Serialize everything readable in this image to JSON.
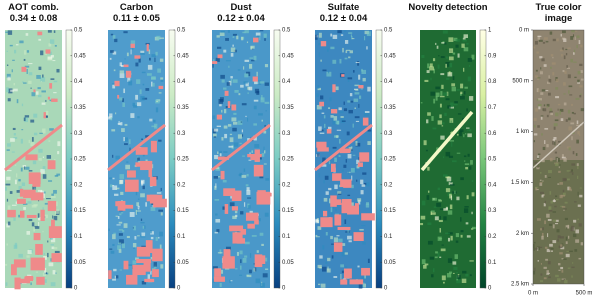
{
  "panels": [
    {
      "title": "AOT comb.",
      "subtitle": "0.34 ± 0.08",
      "colorbar": {
        "colors": [
          "#084081",
          "#2b8cbe",
          "#7bccc4",
          "#ccebc5",
          "#f7fcf0"
        ],
        "lim": [
          0,
          0.5
        ],
        "ticks": [
          0,
          0.05,
          0.1,
          0.15,
          0.2,
          0.25,
          0.3,
          0.35,
          0.4,
          0.45,
          0.5
        ]
      }
    },
    {
      "title": "Carbon",
      "subtitle": "0.11 ± 0.05",
      "colorbar": {
        "colors": [
          "#084081",
          "#2b8cbe",
          "#7bccc4",
          "#ccebc5",
          "#f7fcf0"
        ],
        "lim": [
          0,
          0.5
        ],
        "ticks": [
          0,
          0.05,
          0.1,
          0.15,
          0.2,
          0.25,
          0.3,
          0.35,
          0.4,
          0.45,
          0.5
        ]
      }
    },
    {
      "title": "Dust",
      "subtitle": "0.12 ± 0.04",
      "colorbar": {
        "colors": [
          "#084081",
          "#2b8cbe",
          "#7bccc4",
          "#ccebc5",
          "#f7fcf0"
        ],
        "lim": [
          0,
          0.5
        ],
        "ticks": [
          0,
          0.05,
          0.1,
          0.15,
          0.2,
          0.25,
          0.3,
          0.35,
          0.4,
          0.45,
          0.5
        ]
      }
    },
    {
      "title": "Sulfate",
      "subtitle": "0.12 ± 0.04",
      "colorbar": {
        "colors": [
          "#084081",
          "#2b8cbe",
          "#7bccc4",
          "#ccebc5",
          "#f7fcf0"
        ],
        "lim": [
          0,
          0.5
        ],
        "ticks": [
          0,
          0.05,
          0.1,
          0.15,
          0.2,
          0.25,
          0.3,
          0.35,
          0.4,
          0.45,
          0.5
        ]
      }
    },
    {
      "title": "Novelty detection",
      "colorbar": {
        "colors": [
          "#004529",
          "#238443",
          "#78c679",
          "#d9f0a3",
          "#ffffe5"
        ],
        "lim": [
          0,
          1
        ],
        "ticks": [
          0,
          0.1,
          0.2,
          0.3,
          0.4,
          0.5,
          0.6,
          0.7,
          0.8,
          0.9,
          1
        ]
      }
    }
  ],
  "true_color": {
    "title": "True color image",
    "ylim": [
      0,
      2500
    ],
    "yticks": [
      {
        "value": 0,
        "label": "0 m"
      },
      {
        "value": 500,
        "label": "500 m"
      },
      {
        "value": 1000,
        "label": "1 km"
      },
      {
        "value": 1500,
        "label": "1.5 km"
      },
      {
        "value": 2000,
        "label": "2 km"
      },
      {
        "value": 2500,
        "label": "2.5 km"
      }
    ],
    "xlim": [
      0,
      500
    ],
    "xticks": [
      {
        "value": 0,
        "label": "0 m"
      },
      {
        "value": 500,
        "label": "500 m"
      }
    ]
  }
}
